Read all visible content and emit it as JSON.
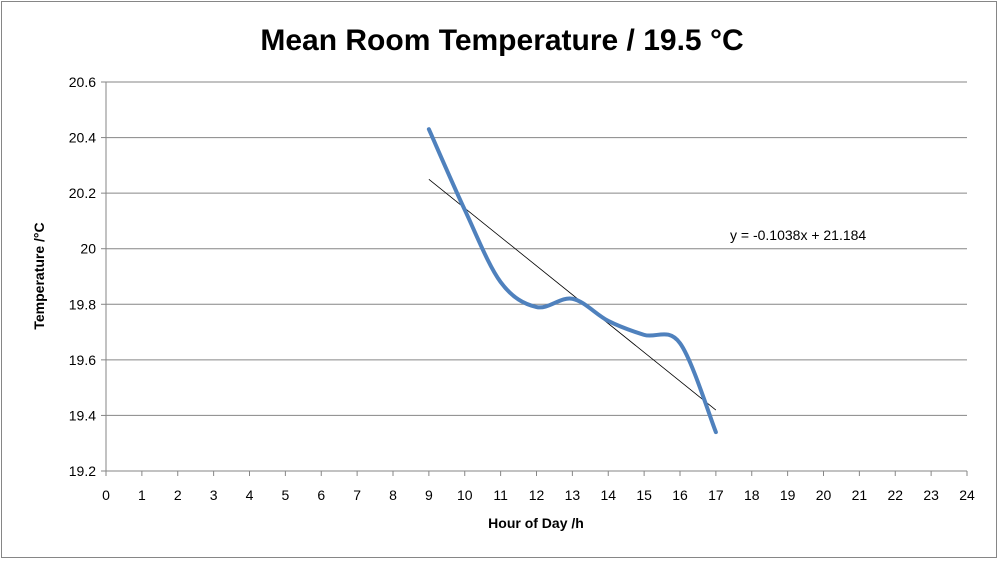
{
  "chart_data": {
    "type": "line",
    "title": "Mean Room Temperature / 19.5 °C",
    "xlabel": "Hour of Day /h",
    "ylabel": "Temperature /°C",
    "xlim": [
      0,
      24
    ],
    "ylim": [
      19.2,
      20.6
    ],
    "x_ticks": [
      "0",
      "1",
      "2",
      "3",
      "4",
      "5",
      "6",
      "7",
      "8",
      "9",
      "10",
      "11",
      "12",
      "13",
      "14",
      "15",
      "16",
      "17",
      "18",
      "19",
      "20",
      "21",
      "22",
      "23",
      "24"
    ],
    "y_ticks": [
      "19.2",
      "19.4",
      "19.6",
      "19.8",
      "20",
      "20.2",
      "20.4",
      "20.6"
    ],
    "grid": "horizontal",
    "series": [
      {
        "x": [
          9,
          10,
          11,
          12,
          13,
          14,
          15,
          16,
          17
        ],
        "values": [
          20.43,
          20.14,
          19.88,
          19.79,
          19.82,
          19.74,
          19.69,
          19.66,
          19.34
        ],
        "color": "#4F81BD",
        "smooth": true
      }
    ],
    "trendline": {
      "type": "linear",
      "slope": -0.1038,
      "intercept": 21.184,
      "x_range": [
        9,
        17
      ],
      "color": "#000000",
      "equation_label": "y = -0.1038x + 21.184"
    }
  }
}
